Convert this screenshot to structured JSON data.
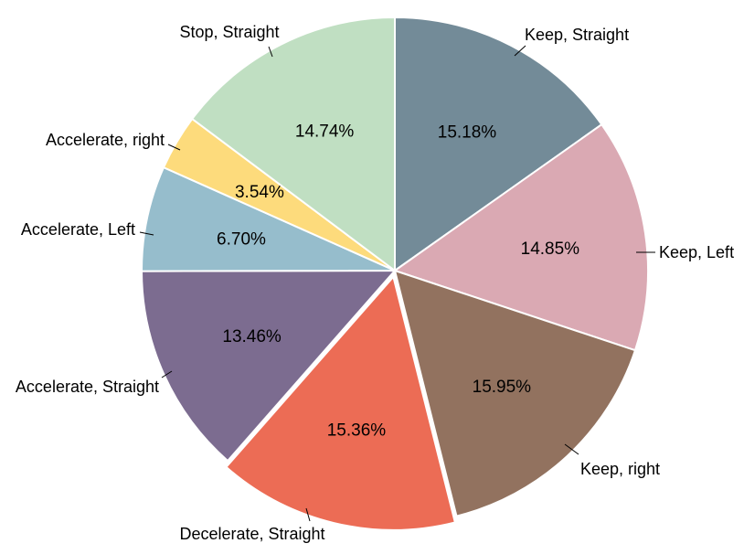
{
  "chart_data": {
    "type": "pie",
    "categories": [
      "Keep, Straight",
      "Keep, Left",
      "Keep, right",
      "Decelerate, Straight",
      "Accelerate, Straight",
      "Accelerate, Left",
      "Accelerate, right",
      "Stop, Straight"
    ],
    "values": [
      15.18,
      14.85,
      15.95,
      15.36,
      13.46,
      6.7,
      3.54,
      14.74
    ],
    "value_labels": [
      "15.18%",
      "14.85%",
      "15.95%",
      "15.36%",
      "13.46%",
      "6.70%",
      "3.54%",
      "14.74%"
    ],
    "colors": [
      "#738b98",
      "#daa9b3",
      "#92725f",
      "#ec6c55",
      "#7c6c90",
      "#96bdcc",
      "#fddb7c",
      "#c0dfc2"
    ],
    "start_angle_deg": 0,
    "direction": "clockwise",
    "exploded": [
      "Decelerate, Straight"
    ],
    "legend": "none",
    "title": ""
  }
}
